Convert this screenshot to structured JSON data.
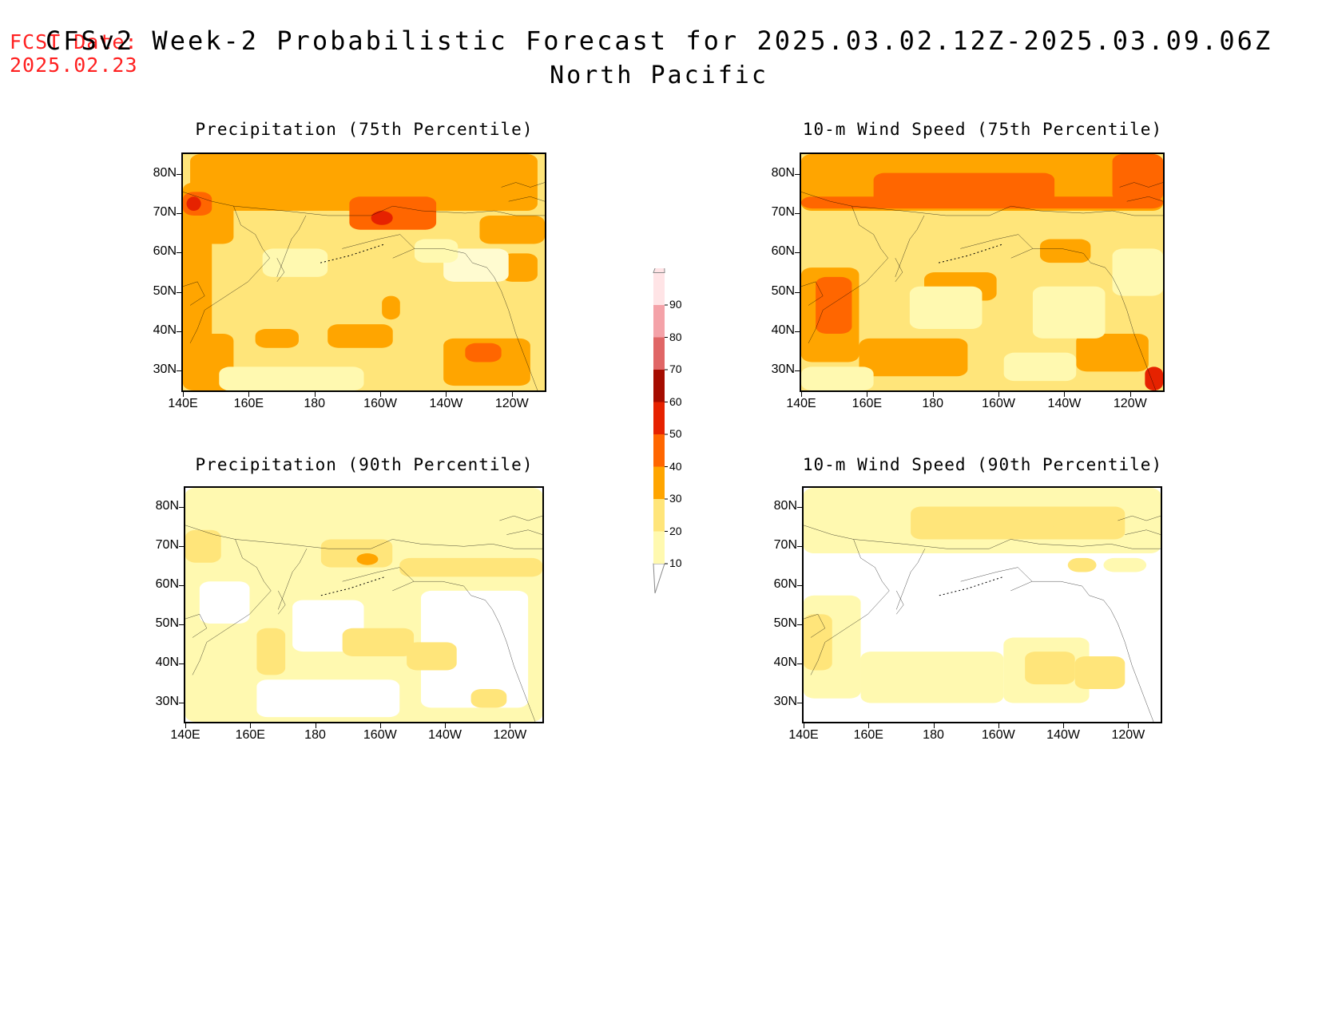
{
  "fcst_date": {
    "label": "FCST Date:",
    "value": "2025.02.23"
  },
  "title": {
    "main": "CFSv2 Week-2 Probabilistic Forecast for 2025.03.02.12Z-2025.03.09.06Z",
    "region": "North Pacific"
  },
  "lat_labels": [
    "80N",
    "70N",
    "60N",
    "50N",
    "40N",
    "30N"
  ],
  "lon_labels": [
    "140E",
    "160E",
    "180",
    "160W",
    "140W",
    "120W"
  ],
  "panels": [
    {
      "title": "Precipitation (75th Percentile)"
    },
    {
      "title": "10-m Wind Speed (75th Percentile)"
    },
    {
      "title": "Precipitation (90th Percentile)"
    },
    {
      "title": "10-m Wind Speed (90th Percentile)"
    }
  ],
  "colorbar": {
    "levels": [
      "10",
      "20",
      "30",
      "40",
      "50",
      "60",
      "70",
      "80",
      "90"
    ],
    "colors": [
      "#fff9b0",
      "#ffe57a",
      "#ffa500",
      "#ff6600",
      "#e62200",
      "#a50c00",
      "#e06666",
      "#f4a2a8",
      "#ffe4e6"
    ]
  }
}
